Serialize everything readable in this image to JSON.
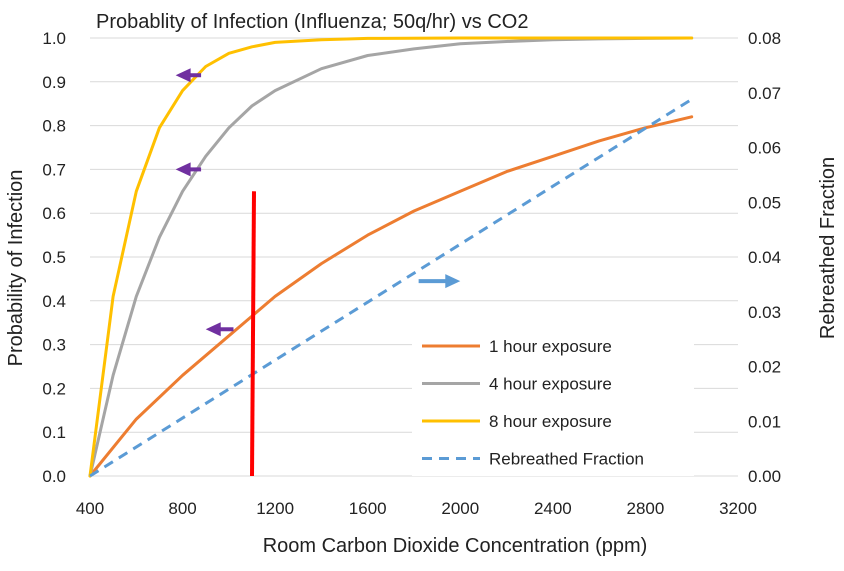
{
  "chart_data": {
    "type": "line",
    "title": "Probablity of Infection (Influenza; 50q/hr) vs CO2",
    "xlabel": "Room Carbon Dioxide Concentration (ppm)",
    "ylabel": "Probability of Infection",
    "y2label": "Rebreathed Fraction",
    "xlim": [
      400,
      3200
    ],
    "ylim": [
      0,
      1.0
    ],
    "y2lim": [
      0,
      0.08
    ],
    "xticks": [
      "400",
      "800",
      "1200",
      "1600",
      "2000",
      "2400",
      "2800",
      "3200"
    ],
    "yticks": [
      "0.0",
      "0.1",
      "0.2",
      "0.3",
      "0.4",
      "0.5",
      "0.6",
      "0.7",
      "0.8",
      "0.9",
      "1.0"
    ],
    "y2ticks": [
      "0.00",
      "0.01",
      "0.02",
      "0.03",
      "0.04",
      "0.05",
      "0.06",
      "0.07",
      "0.08"
    ],
    "grid": "horizontal",
    "legend_position": "bottom-right",
    "series": [
      {
        "name": "1 hour exposure",
        "axis": "left",
        "color": "#ed7d31",
        "style": "solid",
        "x": [
          400,
          600,
          800,
          1000,
          1200,
          1400,
          1600,
          1800,
          2000,
          2200,
          2400,
          2600,
          2800,
          3000
        ],
        "y": [
          0.0,
          0.13,
          0.23,
          0.32,
          0.41,
          0.485,
          0.55,
          0.605,
          0.65,
          0.695,
          0.73,
          0.765,
          0.795,
          0.82
        ]
      },
      {
        "name": "4 hour exposure",
        "axis": "left",
        "color": "#a5a5a5",
        "style": "solid",
        "x": [
          400,
          500,
          600,
          700,
          800,
          900,
          1000,
          1100,
          1200,
          1400,
          1600,
          1800,
          2000,
          2200,
          2400,
          2600,
          2800,
          3000
        ],
        "y": [
          0.0,
          0.23,
          0.41,
          0.545,
          0.65,
          0.73,
          0.795,
          0.845,
          0.88,
          0.93,
          0.96,
          0.975,
          0.987,
          0.992,
          0.996,
          0.998,
          0.999,
          1.0
        ]
      },
      {
        "name": "8 hour exposure",
        "axis": "left",
        "color": "#ffc000",
        "style": "solid",
        "x": [
          400,
          500,
          600,
          700,
          800,
          900,
          1000,
          1100,
          1200,
          1400,
          1600,
          2000,
          3000
        ],
        "y": [
          0.0,
          0.41,
          0.65,
          0.795,
          0.88,
          0.935,
          0.965,
          0.98,
          0.99,
          0.996,
          0.999,
          1.0,
          1.0
        ]
      },
      {
        "name": "Rebreathed Fraction",
        "axis": "right",
        "color": "#5b9bd5",
        "style": "dashed",
        "x": [
          400,
          3000
        ],
        "y": [
          0.0,
          0.0688
        ]
      }
    ],
    "annotations": [
      {
        "type": "vertical-line",
        "color": "#ff0000",
        "x": 1100,
        "y_from": 0.0,
        "y_to": 0.65
      },
      {
        "type": "arrow-left",
        "color": "#7030a0",
        "x_from": 880,
        "x_to": 770,
        "y": 0.915
      },
      {
        "type": "arrow-left",
        "color": "#7030a0",
        "x_from": 880,
        "x_to": 770,
        "y": 0.7
      },
      {
        "type": "arrow-left",
        "color": "#7030a0",
        "x_from": 1020,
        "x_to": 900,
        "y": 0.335
      },
      {
        "type": "arrow-right",
        "color": "#5b9bd5",
        "x_from": 1820,
        "x_to": 2000,
        "y": 0.445
      }
    ]
  }
}
